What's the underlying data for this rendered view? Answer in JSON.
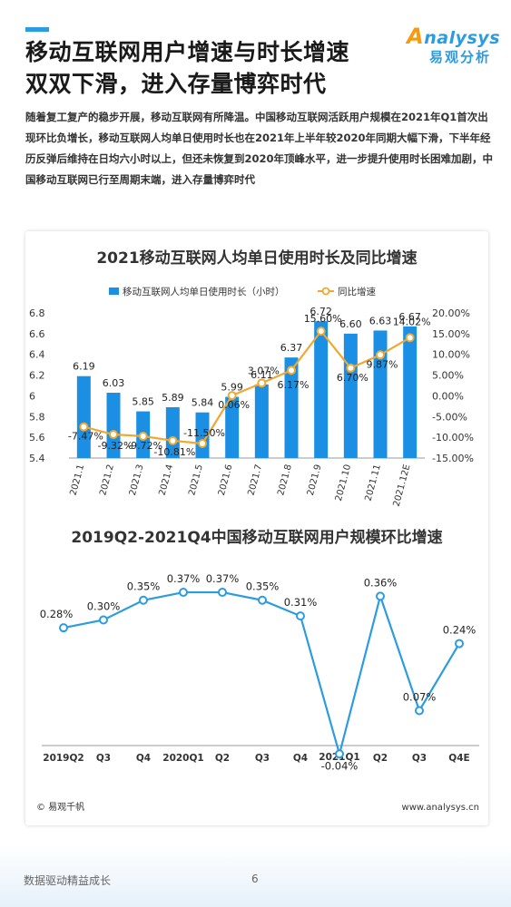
{
  "header": {
    "title_line1": "移动互联网用户增速与时长增速",
    "title_line2": "双双下滑，进入存量博弈时代"
  },
  "logo": {
    "en": "nalysys",
    "en_initial": "A",
    "cn": "易观分析"
  },
  "intro": "随着复工复产的稳步开展，移动互联网有所降温。中国移动互联网活跃用户规模在2021年Q1首次出现环比负增长，移动互联网人均单日使用时长也在2021年上半年较2020年同期大幅下滑，下半年经历反弹后维持在日均六小时以上，但还未恢复到2020年顶峰水平，进一步提升使用时长困难加剧，中国移动互联网已行至周期末端，进入存量博弈时代",
  "chart_data": [
    {
      "type": "bar",
      "title": "2021移动互联网人均单日使用时长及同比增速",
      "categories": [
        "2021.1",
        "2021.2",
        "2021.3",
        "2021.4",
        "2021.5",
        "2021.6",
        "2021.7",
        "2021.8",
        "2021.9",
        "2021.10",
        "2021.11",
        "2021.12E"
      ],
      "series": [
        {
          "name": "移动互联网人均单日使用时长（小时）",
          "type": "bar",
          "axis": "left",
          "color": "#1a8fe3",
          "values": [
            6.19,
            6.03,
            5.85,
            5.89,
            5.84,
            5.99,
            6.11,
            6.37,
            6.72,
            6.6,
            6.63,
            6.67
          ],
          "labels": [
            "6.19",
            "6.03",
            "5.85",
            "5.89",
            "5.84",
            "5.99",
            "6.11",
            "6.37",
            "6.72",
            "6.60",
            "6.63",
            "6.67"
          ]
        },
        {
          "name": "同比增速",
          "type": "line",
          "axis": "right",
          "color": "#f0a830",
          "values": [
            -7.47,
            -9.32,
            -9.72,
            -10.81,
            -11.5,
            0.06,
            3.07,
            6.17,
            15.6,
            6.7,
            9.87,
            14.02
          ],
          "labels": [
            "-7.47%",
            "-9.32%",
            "-9.72%",
            "-10.81%",
            "-11.50%",
            "0.06%",
            "3.07%",
            "6.17%",
            "15.60%",
            "6.70%",
            "9.87%",
            "14.02%"
          ]
        }
      ],
      "ylim": [
        5.4,
        6.8
      ],
      "y_ticks": [
        "5.4",
        "5.6",
        "5.8",
        "6",
        "6.2",
        "6.4",
        "6.6",
        "6.8"
      ],
      "y2lim": [
        -15,
        20
      ],
      "y2_ticks": [
        "-15.00%",
        "-10.00%",
        "-5.00%",
        "0.00%",
        "5.00%",
        "10.00%",
        "15.00%",
        "20.00%"
      ],
      "legend": "top"
    },
    {
      "type": "line",
      "title": "2019Q2-2021Q4中国移动互联网用户规模环比增速",
      "categories": [
        "2019Q2",
        "Q3",
        "Q4",
        "2020Q1",
        "Q2",
        "Q3",
        "Q4",
        "2021Q1",
        "Q2",
        "Q3",
        "Q4E"
      ],
      "series": [
        {
          "color": "#2b9ce0",
          "values": [
            0.28,
            0.3,
            0.35,
            0.37,
            0.37,
            0.35,
            0.31,
            -0.04,
            0.36,
            0.07,
            0.24
          ],
          "labels": [
            "0.28%",
            "0.30%",
            "0.35%",
            "0.37%",
            "0.37%",
            "0.35%",
            "0.31%",
            "-0.04%",
            "0.36%",
            "0.07%",
            "0.24%"
          ]
        }
      ],
      "ylim": [
        -0.06,
        0.4
      ]
    }
  ],
  "card_footer": {
    "source": "© 易观千帆",
    "site": "www.analysys.cn"
  },
  "footer": {
    "slogan": "数据驱动精益成长",
    "page": "6"
  }
}
